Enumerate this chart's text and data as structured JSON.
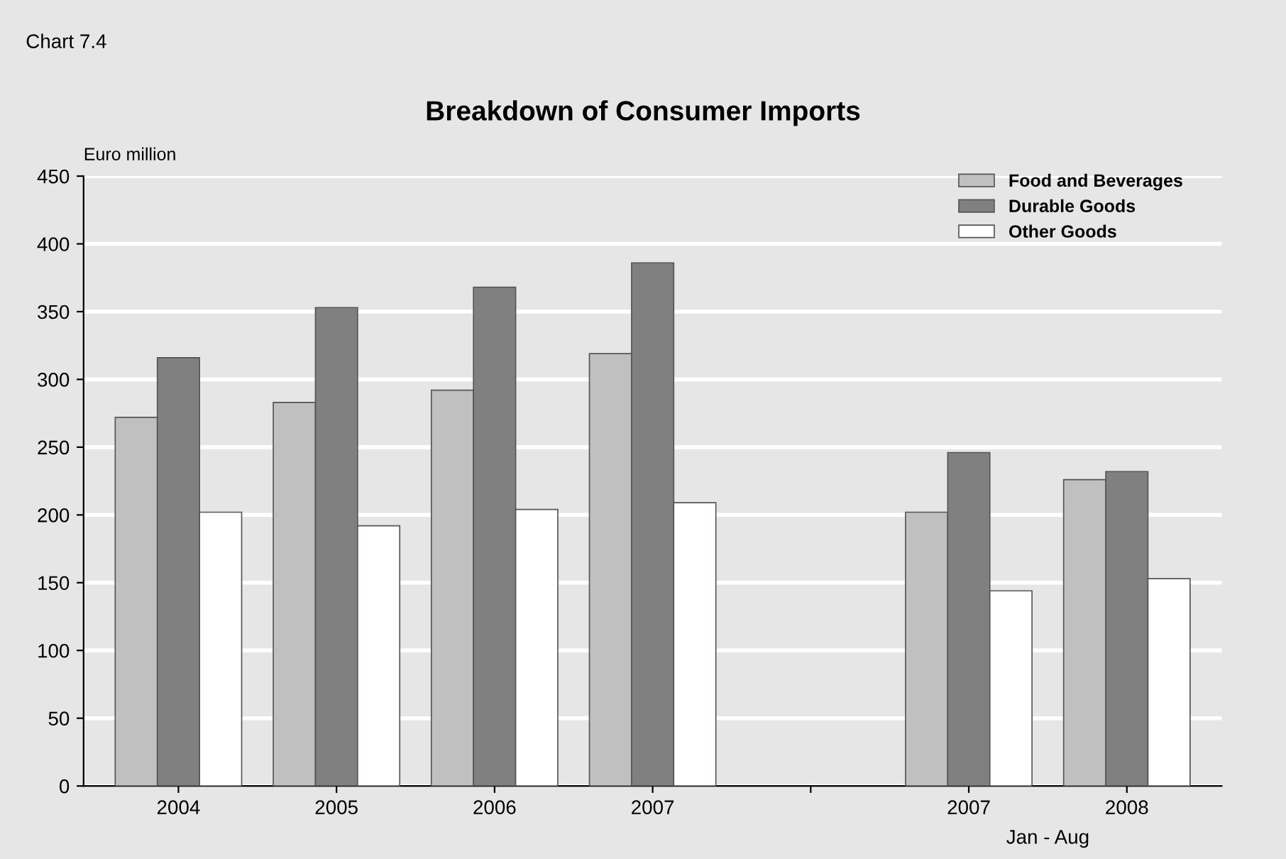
{
  "chart_data": {
    "type": "bar",
    "title": "Breakdown of Consumer Imports",
    "ylabel": "Euro million",
    "categories": [
      "2004",
      "2005",
      "2006",
      "2007",
      null,
      "2007",
      "2008"
    ],
    "series": [
      {
        "name": "Food and Beverages",
        "color": "#c0c0c0",
        "values": [
          272,
          283,
          292,
          319,
          null,
          202,
          226
        ]
      },
      {
        "name": "Durable Goods",
        "color": "#808080",
        "values": [
          316,
          353,
          368,
          386,
          null,
          246,
          232
        ]
      },
      {
        "name": "Other Goods",
        "color": "#ffffff",
        "values": [
          202,
          192,
          204,
          209,
          null,
          144,
          153
        ]
      }
    ],
    "ylim": [
      0,
      450
    ],
    "yticks": [
      0,
      50,
      100,
      150,
      200,
      250,
      300,
      350,
      400,
      450
    ],
    "grid": "y",
    "legend": "top right",
    "annotations": [
      "Chart 7.4",
      "Jan - Aug"
    ]
  }
}
